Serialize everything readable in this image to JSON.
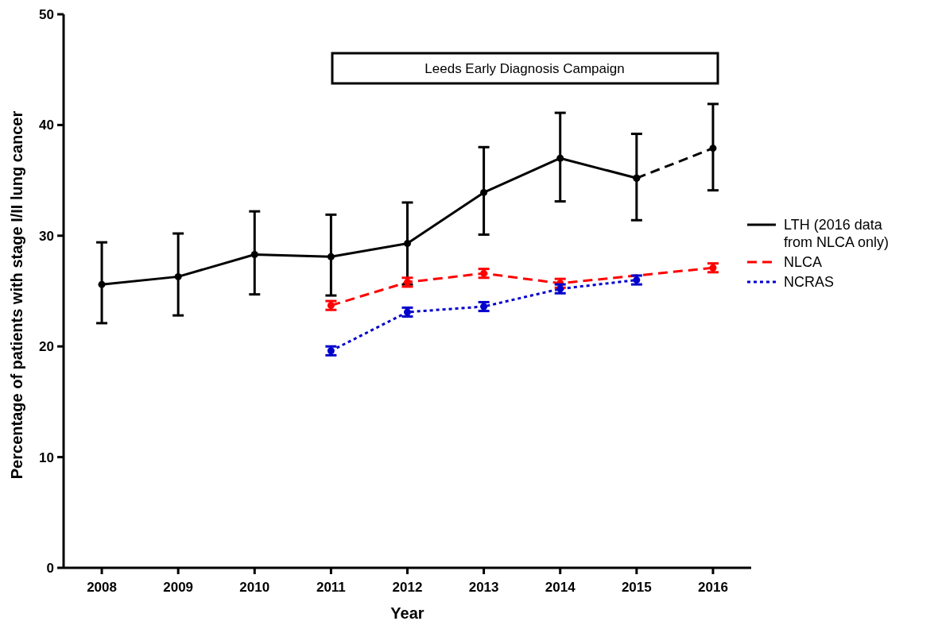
{
  "chart_data": {
    "type": "line",
    "xlabel": "Year",
    "ylabel": "Percentage of patients with stage I/II lung cancer",
    "categories": [
      "2008",
      "2009",
      "2010",
      "2011",
      "2012",
      "2013",
      "2014",
      "2015",
      "2016"
    ],
    "series": [
      {
        "name": "LTH (2016 data from NLCA only)",
        "color": "#000000",
        "line_style": "solid",
        "values": [
          25.6,
          26.3,
          28.3,
          28.1,
          29.3,
          33.9,
          37.0,
          35.2,
          null
        ],
        "errors": [
          [
            22.1,
            29.4
          ],
          [
            22.8,
            30.2
          ],
          [
            24.7,
            32.2
          ],
          [
            24.6,
            31.9
          ],
          [
            25.6,
            33.0
          ],
          [
            30.1,
            38.0
          ],
          [
            33.1,
            41.1
          ],
          [
            31.4,
            39.2
          ],
          null
        ]
      },
      {
        "color": "#000000",
        "line_style": "dashed",
        "values": [
          null,
          null,
          null,
          null,
          null,
          null,
          null,
          35.2,
          37.9
        ],
        "errors": [
          null,
          null,
          null,
          null,
          null,
          null,
          null,
          null,
          [
            34.1,
            41.9
          ]
        ]
      },
      {
        "name": "NLCA",
        "color": "#ff0000",
        "line_style": "dashed",
        "values": [
          null,
          null,
          null,
          23.7,
          25.8,
          26.6,
          25.7,
          null,
          27.1
        ],
        "errors": [
          null,
          null,
          null,
          0.4,
          0.4,
          0.4,
          0.4,
          null,
          0.4
        ]
      },
      {
        "name": "NCRAS",
        "color": "#0000cc",
        "line_style": "dotted",
        "values": [
          null,
          null,
          null,
          19.6,
          23.1,
          23.6,
          25.2,
          26.0,
          null
        ],
        "errors": [
          null,
          null,
          null,
          0.4,
          0.4,
          0.4,
          0.4,
          0.4,
          null
        ]
      }
    ],
    "ylim": [
      0,
      50
    ],
    "yticks": [
      0,
      10,
      20,
      30,
      40,
      50
    ],
    "grid": false,
    "legend": "right",
    "marker": "circle",
    "annotations": [
      "Leeds Early Diagnosis Campaign"
    ]
  }
}
